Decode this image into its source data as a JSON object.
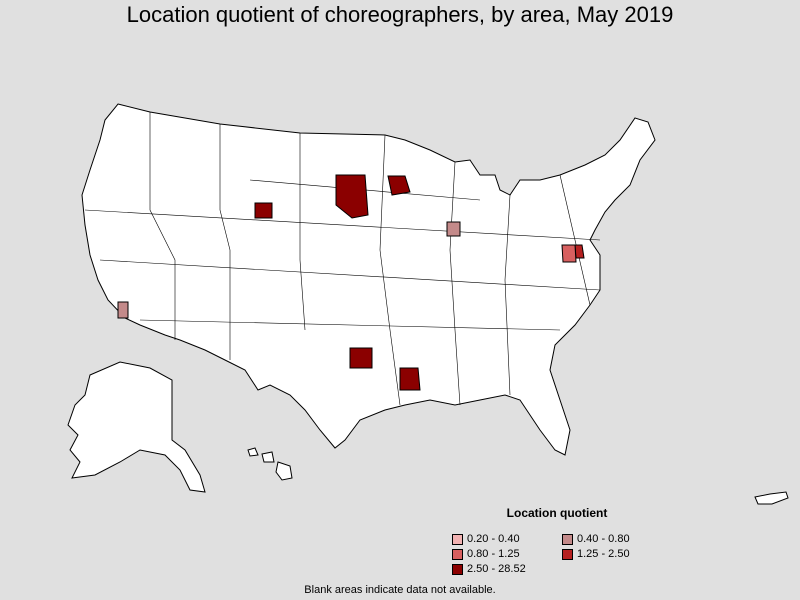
{
  "title": "Location quotient of choreographers, by area, May 2019",
  "legend": {
    "title": "Location quotient",
    "items": [
      {
        "label": "0.20 - 0.40",
        "color": "#f2b2b2"
      },
      {
        "label": "0.40 - 0.80",
        "color": "#c48a8a"
      },
      {
        "label": "0.80 - 1.25",
        "color": "#d86060"
      },
      {
        "label": "1.25 - 2.50",
        "color": "#b52020"
      },
      {
        "label": "2.50 - 28.52",
        "color": "#8b0000"
      }
    ]
  },
  "footnote": "Blank areas indicate data not available.",
  "colors": {
    "background": "#e0e0e0",
    "land": "#ffffff",
    "border": "#000000"
  }
}
